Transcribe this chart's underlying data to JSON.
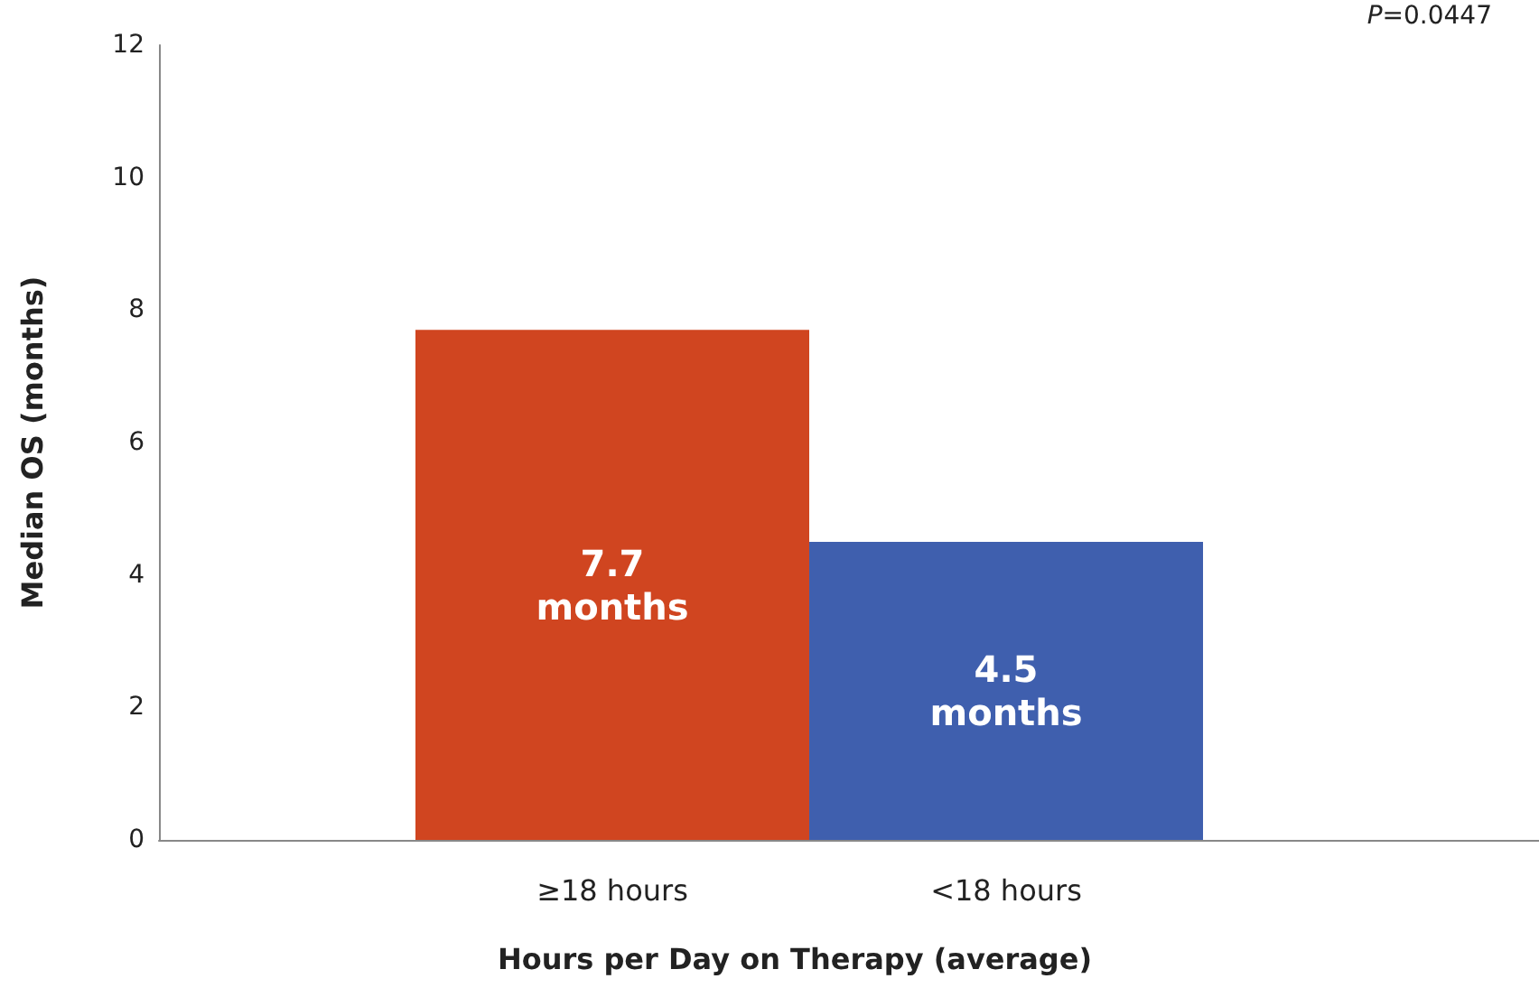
{
  "chart_data": {
    "type": "bar",
    "xlabel": "Hours per Day on Therapy (average)",
    "ylabel": "Median OS (months)",
    "categories": [
      "≥18 hours",
      "<18 hours"
    ],
    "values": [
      7.7,
      4.5
    ],
    "colors": [
      "#d04520",
      "#3f5fae"
    ],
    "value_labels": [
      "7.7\nmonths",
      "4.5\nmonths"
    ],
    "ylim": [
      0,
      12
    ],
    "yticks": [
      0,
      2,
      4,
      6,
      8,
      10,
      12
    ],
    "grid": false,
    "annotations": [
      "P=0.0447"
    ]
  }
}
